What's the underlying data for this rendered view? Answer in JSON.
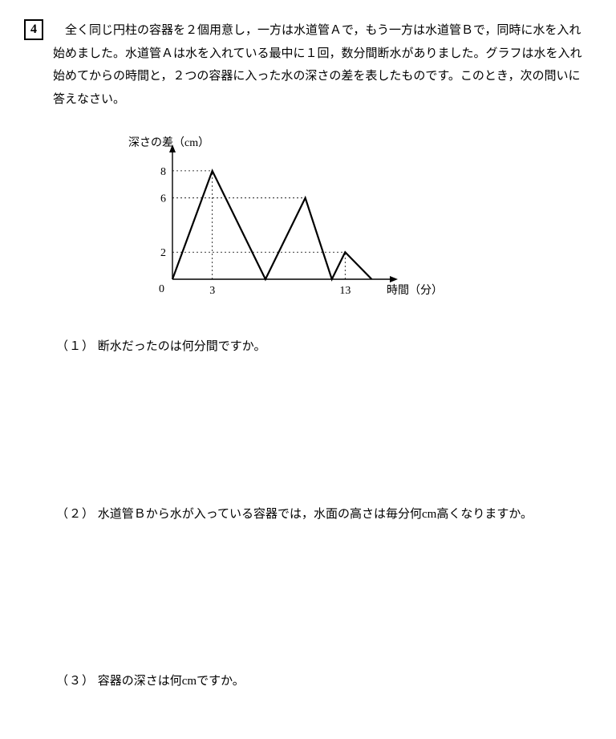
{
  "problem": {
    "number": "4",
    "text": "全く同じ円柱の容器を２個用意し，一方は水道管Ａで，もう一方は水道管Ｂで，同時に水を入れ始めました。水道管Ａは水を入れている最中に１回，数分間断水がありました。グラフは水を入れ始めてからの時間と，２つの容器に入った水の深さの差を表したものです。このとき，次の問いに答えなさい。"
  },
  "chart": {
    "type": "line",
    "y_label": "深さの差（cm）",
    "x_label": "時間（分）",
    "x_ticks": [
      0,
      3,
      13
    ],
    "y_ticks": [
      2,
      6,
      8
    ],
    "y_range": [
      0,
      9
    ],
    "x_range": [
      0,
      16
    ],
    "points": [
      {
        "x": 0,
        "y": 0
      },
      {
        "x": 3,
        "y": 8
      },
      {
        "x": 7,
        "y": 0
      },
      {
        "x": 10,
        "y": 6
      },
      {
        "x": 12,
        "y": 0
      },
      {
        "x": 13,
        "y": 2
      },
      {
        "x": 15,
        "y": 0
      }
    ],
    "guide_horiz": [
      8,
      6,
      2
    ],
    "guide_vert": [
      3,
      13
    ],
    "style": {
      "stroke_color": "#000000",
      "stroke_width": 2.2,
      "axis_color": "#000000",
      "axis_width": 1.4,
      "guide_dash": "2 3",
      "guide_color": "#000000",
      "guide_width": 0.8,
      "label_fontsize": 14,
      "tick_fontsize": 14,
      "background": "#ffffff"
    }
  },
  "questions": {
    "q1": {
      "num": "（１）",
      "text": "断水だったのは何分間ですか。"
    },
    "q2": {
      "num": "（２）",
      "text": "水道管Ｂから水が入っている容器では，水面の高さは毎分何cm高くなりますか。"
    },
    "q3": {
      "num": "（３）",
      "text": "容器の深さは何cmですか。"
    }
  }
}
